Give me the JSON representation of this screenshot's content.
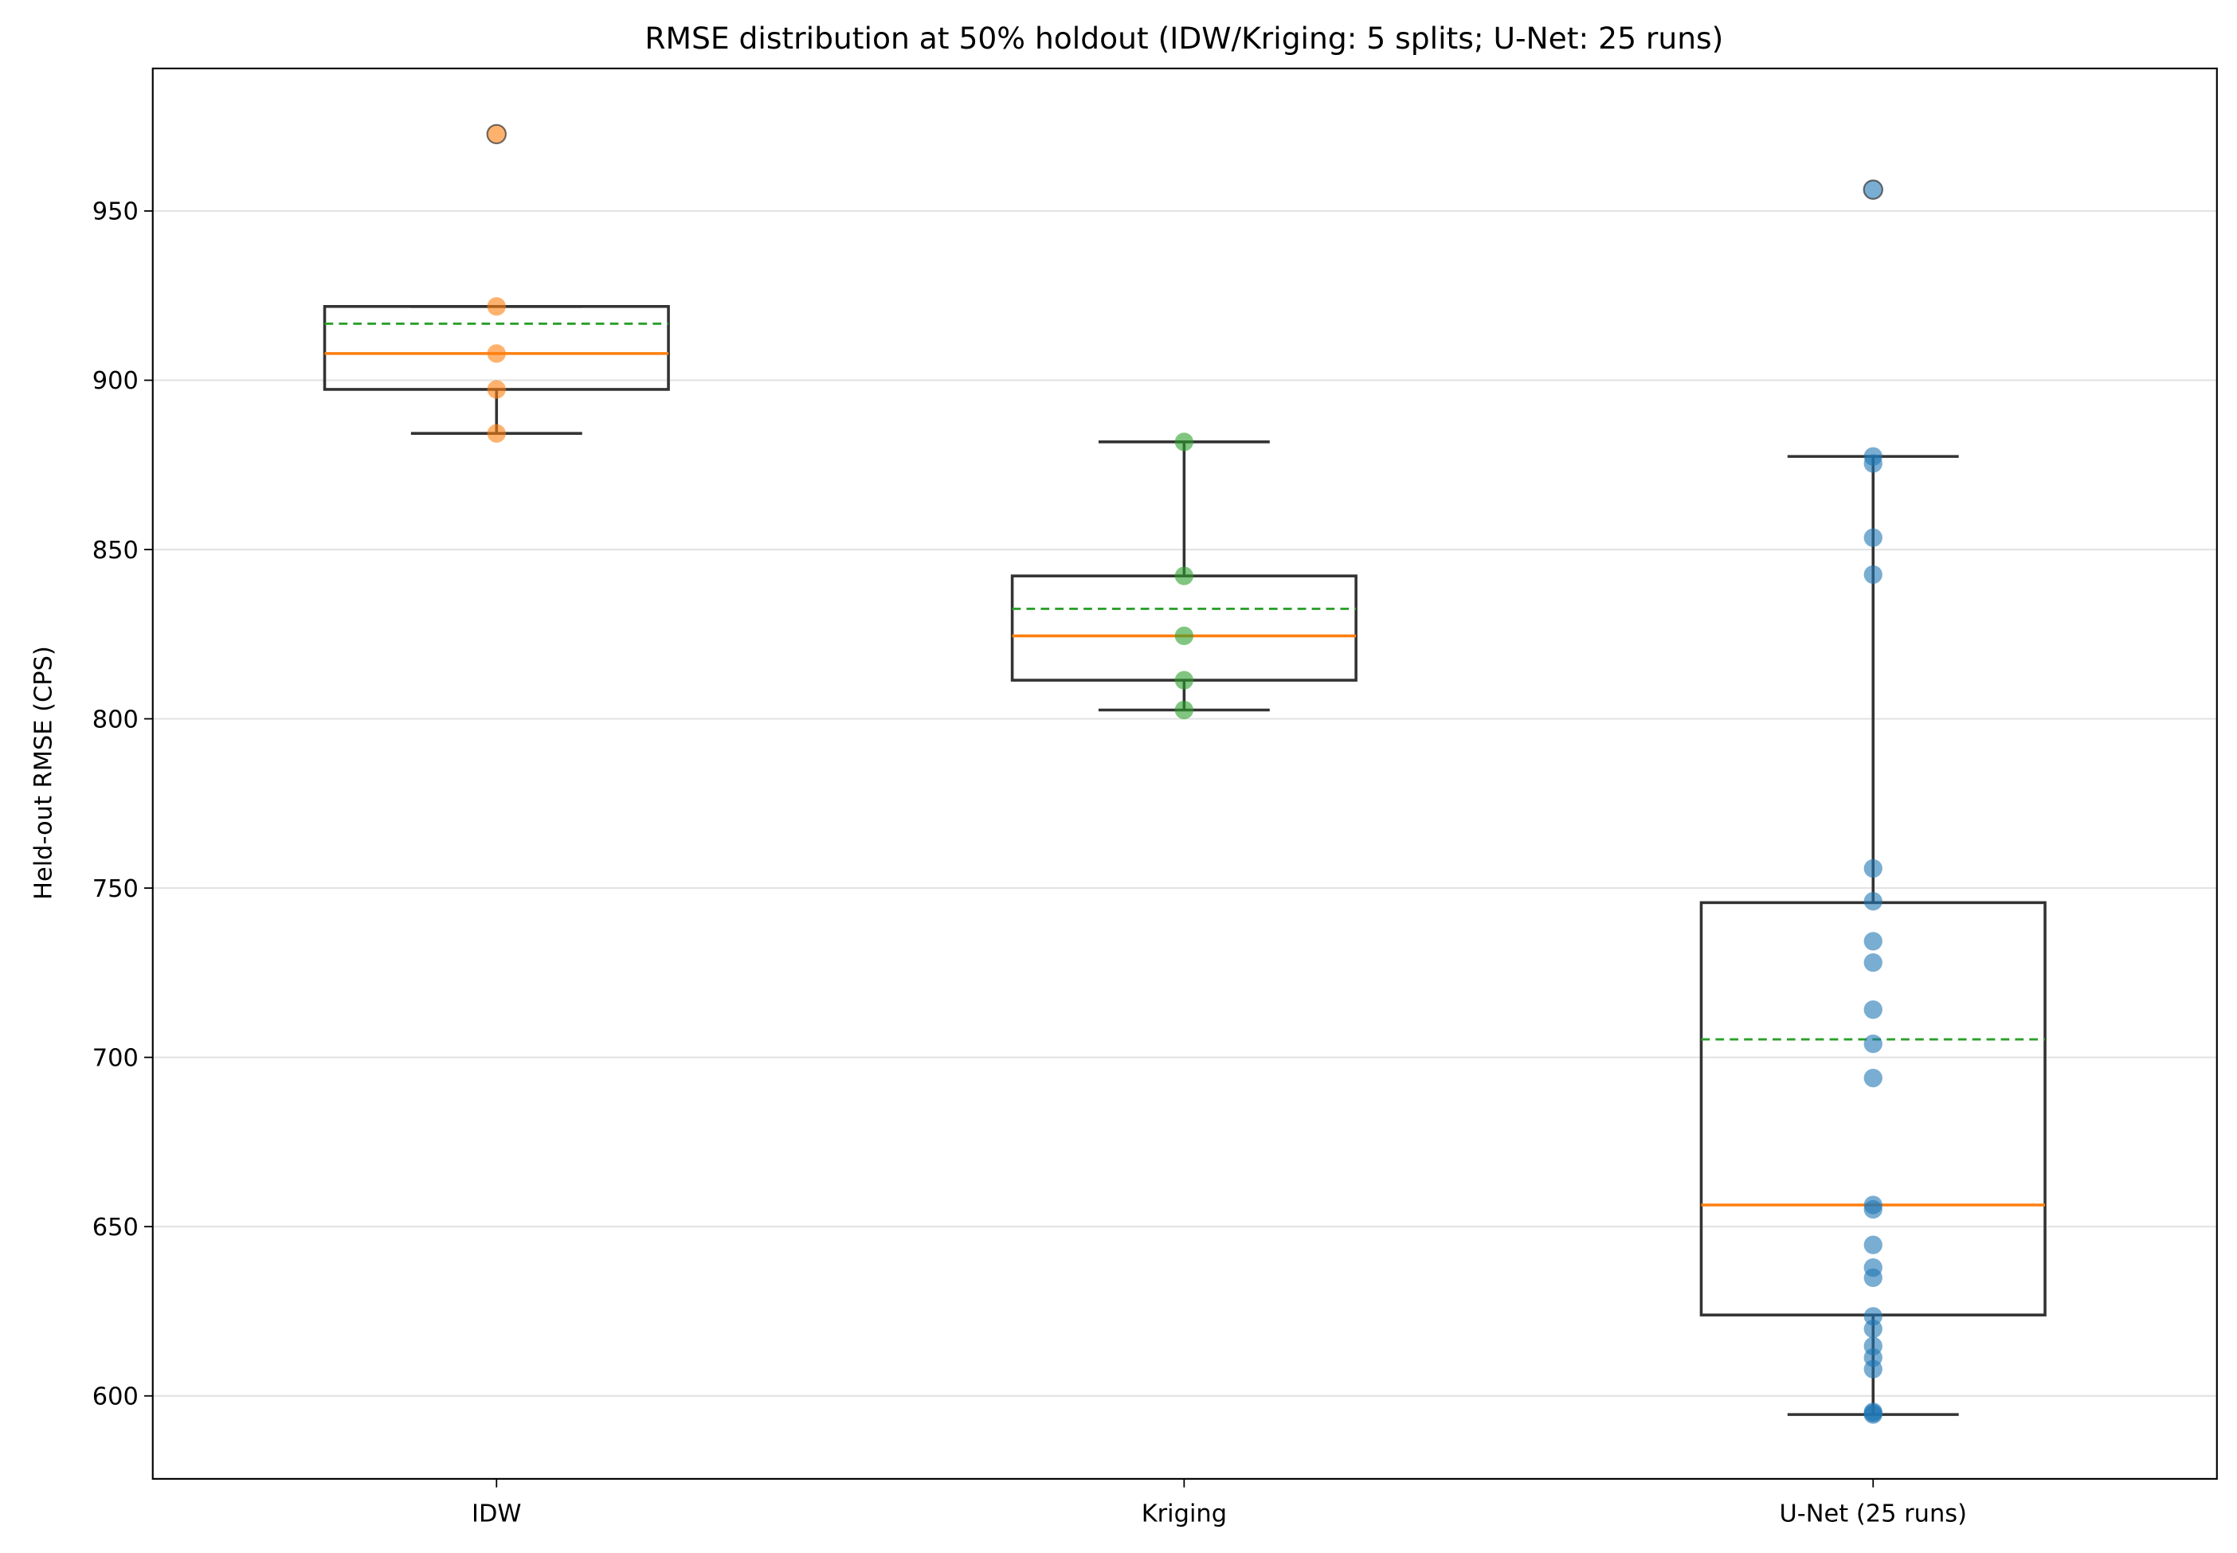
{
  "chart_data": {
    "type": "box",
    "title": "RMSE distribution at 50% holdout (IDW/Kriging: 5 splits; U-Net: 25 runs)",
    "y_label": "Held-out RMSE (CPS)",
    "categories": [
      "IDW",
      "Kriging",
      "U-Net (25 runs)"
    ],
    "ylim": [
      575.5,
      992.1
    ],
    "yticks": [
      600,
      650,
      700,
      750,
      800,
      850,
      900,
      950
    ],
    "grid": true,
    "median_color": "#ff7f0e",
    "mean_color": "#2ca02c",
    "groups": [
      {
        "color": "#ff7f0e",
        "q1": 897.3,
        "median": 907.9,
        "q3": 921.8,
        "mean": 916.7,
        "whisker_low": 884.3,
        "whisker_high": 921.8,
        "points": [
          972.7,
          921.8,
          907.9,
          897.3,
          884.3
        ]
      },
      {
        "color": "#2ca02c",
        "q1": 811.4,
        "median": 824.5,
        "q3": 842.2,
        "mean": 832.5,
        "whisker_low": 802.6,
        "whisker_high": 881.8,
        "points": [
          881.8,
          842.2,
          824.5,
          811.4,
          802.6
        ]
      },
      {
        "color": "#1f77b4",
        "q1": 623.9,
        "median": 656.4,
        "q3": 745.7,
        "mean": 705.3,
        "whisker_low": 594.5,
        "whisker_high": 877.5,
        "points": [
          956.3,
          877.5,
          875.4,
          853.5,
          842.6,
          755.8,
          746.1,
          734.3,
          728.0,
          714.1,
          704.0,
          693.9,
          656.4,
          655.1,
          644.6,
          637.9,
          634.9,
          623.5,
          619.8,
          614.7,
          611.3,
          607.9,
          595.3,
          594.9,
          594.5
        ]
      }
    ]
  }
}
